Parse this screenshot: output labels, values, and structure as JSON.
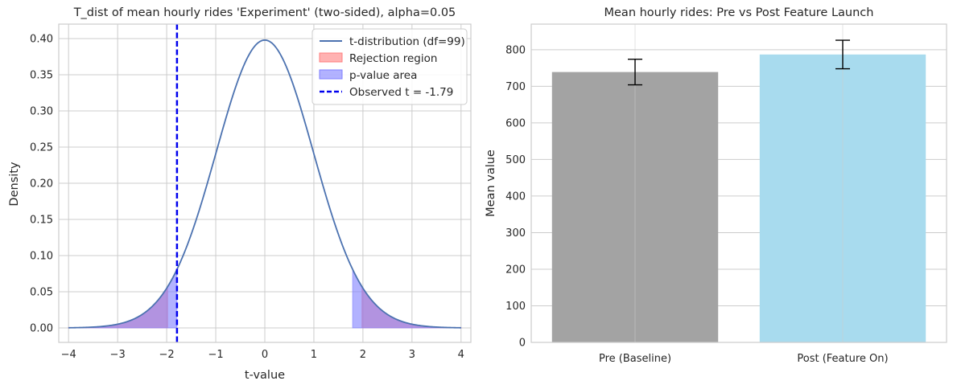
{
  "chart_data": [
    {
      "type": "line",
      "title": "T_dist of mean hourly rides 'Experiment' (two-sided), alpha=0.05",
      "xlabel": "t-value",
      "ylabel": "Density",
      "xlim": [
        -4.2,
        4.2
      ],
      "ylim": [
        -0.02,
        0.42
      ],
      "xticks": [
        -4,
        -3,
        -2,
        -1,
        0,
        1,
        2,
        3,
        4
      ],
      "xtick_labels": [
        "−4",
        "−3",
        "−2",
        "−1",
        "0",
        "1",
        "2",
        "3",
        "4"
      ],
      "yticks": [
        0.0,
        0.05,
        0.1,
        0.15,
        0.2,
        0.25,
        0.3,
        0.35,
        0.4
      ],
      "ytick_labels": [
        "0.00",
        "0.05",
        "0.10",
        "0.15",
        "0.20",
        "0.25",
        "0.30",
        "0.35",
        "0.40"
      ],
      "grid": true,
      "legend_position": "top-right",
      "degrees_of_freedom": 99,
      "critical_t": 1.98,
      "observed_t": -1.79,
      "series": [
        {
          "name": "t-distribution (df=99)",
          "kind": "line",
          "color": "#4c72b0"
        },
        {
          "name": "Rejection region",
          "kind": "fill",
          "color": "#ff7f7f",
          "x_ranges": [
            [
              -4,
              -1.98
            ],
            [
              1.98,
              4
            ]
          ]
        },
        {
          "name": "p-value area",
          "kind": "fill",
          "color": "#7f7fff",
          "x_ranges": [
            [
              -4,
              -1.79
            ],
            [
              1.79,
              4
            ]
          ]
        },
        {
          "name": "Observed t = -1.79",
          "kind": "vline",
          "color": "#0000ee",
          "x": -1.79
        }
      ]
    },
    {
      "type": "bar",
      "title": "Mean hourly rides: Pre vs Post Feature Launch",
      "xlabel": "",
      "ylabel": "Mean value",
      "ylim": [
        0,
        870
      ],
      "yticks": [
        0,
        100,
        200,
        300,
        400,
        500,
        600,
        700,
        800
      ],
      "ytick_labels": [
        "0",
        "100",
        "200",
        "300",
        "400",
        "500",
        "600",
        "700",
        "800"
      ],
      "grid": true,
      "categories": [
        "Pre (Baseline)",
        "Post (Feature On)"
      ],
      "values": [
        739,
        787
      ],
      "errors": [
        35,
        39
      ],
      "colors": [
        "#a3a3a3",
        "#a8dbee"
      ]
    }
  ]
}
